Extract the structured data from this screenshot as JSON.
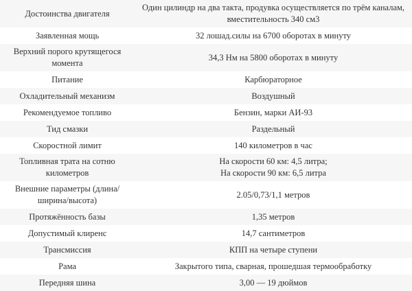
{
  "rows": [
    {
      "label": [
        "Достоинства двигателя"
      ],
      "value": [
        "Один цилиндр на два такта, продувка осуществляется по трём каналам,",
        "вместительность 340 см3"
      ]
    },
    {
      "label": [
        "Заявленная мощь"
      ],
      "value": [
        "32 лошад.силы на 6700 оборотах в минуту"
      ]
    },
    {
      "label": [
        "Верхний порого крутящегося",
        "момента"
      ],
      "value": [
        "34,3 Нм на 5800 оборотах в минуту"
      ]
    },
    {
      "label": [
        "Питание"
      ],
      "value": [
        "Карбюраторное"
      ]
    },
    {
      "label": [
        "Охладительный механизм"
      ],
      "value": [
        "Воздушный"
      ]
    },
    {
      "label": [
        "Рекомендуемое топливо"
      ],
      "value": [
        "Бензин, марки АИ-93"
      ]
    },
    {
      "label": [
        "Тид смазки"
      ],
      "value": [
        "Раздельный"
      ]
    },
    {
      "label": [
        "Скоростной лимит"
      ],
      "value": [
        "140 километров в час"
      ]
    },
    {
      "label": [
        "Топливная трата на сотню",
        "километров"
      ],
      "value": [
        "На скорости 60 км: 4,5 литра;",
        "На скорости 90 км: 6,5 литра"
      ]
    },
    {
      "label": [
        "Внешние параметры (длина/",
        "ширина/высота)"
      ],
      "value": [
        "2.05/0,73/1,1 метров"
      ]
    },
    {
      "label": [
        "Протяжённость базы"
      ],
      "value": [
        "1,35 метров"
      ]
    },
    {
      "label": [
        "Допустимый клиренс"
      ],
      "value": [
        "14,7 сантиметров"
      ]
    },
    {
      "label": [
        "Трансмиссия"
      ],
      "value": [
        "КПП на четыре ступени"
      ]
    },
    {
      "label": [
        "Рама"
      ],
      "value": [
        "Закрытого типа, сварная, прошедшая термообработку"
      ]
    },
    {
      "label": [
        "Передняя шина"
      ],
      "value": [
        "3,00 — 19 дюймов"
      ]
    }
  ]
}
